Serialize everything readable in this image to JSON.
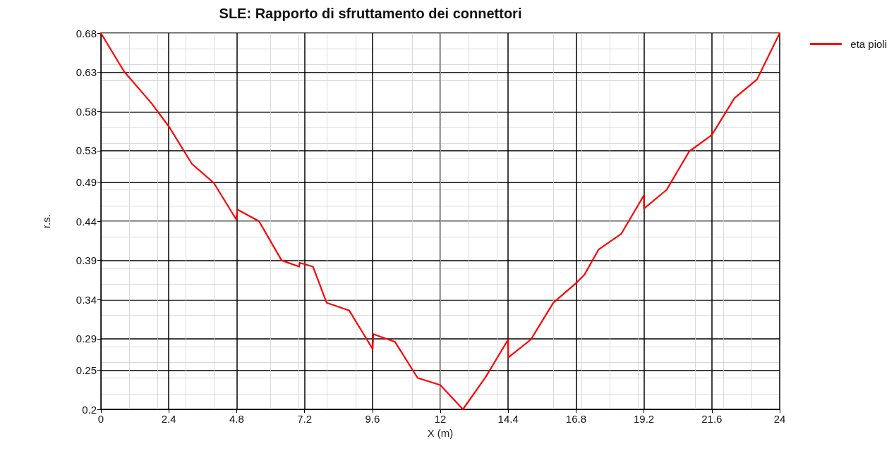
{
  "chart_data": {
    "type": "line",
    "title": "SLE: Rapporto di sfruttamento dei connettori",
    "xlabel": "X (m)",
    "ylabel": "r.s.",
    "series": [
      {
        "name": "eta pioli",
        "color": "#ff0000",
        "x": [
          0,
          0.82,
          1.8,
          2.42,
          3.22,
          3.99,
          4.79,
          4.82,
          5.59,
          6.39,
          7.01,
          7.03,
          7.5,
          7.98,
          8.78,
          9.61,
          9.63,
          10.4,
          11.2,
          12.0,
          12.8,
          13.6,
          14.4,
          14.4,
          15.2,
          16.0,
          16.8,
          17.1,
          17.6,
          18.4,
          19.2,
          19.2,
          20.0,
          20.8,
          21.6,
          22.4,
          23.2,
          24
        ],
        "values": [
          0.68,
          0.631,
          0.59,
          0.56,
          0.513,
          0.489,
          0.442,
          0.455,
          0.44,
          0.39,
          0.382,
          0.387,
          0.382,
          0.336,
          0.326,
          0.277,
          0.296,
          0.286,
          0.24,
          0.231,
          0.2,
          0.241,
          0.289,
          0.266,
          0.289,
          0.336,
          0.361,
          0.372,
          0.404,
          0.424,
          0.473,
          0.456,
          0.48,
          0.529,
          0.55,
          0.597,
          0.621,
          0.68
        ]
      }
    ],
    "xlim": [
      0,
      24
    ],
    "xticks": [
      0,
      2.4,
      4.8,
      7.2,
      9.6,
      12,
      14.4,
      16.8,
      19.2,
      21.6,
      24
    ],
    "ylim": [
      0.2,
      0.68
    ],
    "yticks": [
      0.2,
      0.25,
      0.29,
      0.34,
      0.39,
      0.44,
      0.49,
      0.53,
      0.58,
      0.63,
      0.68
    ],
    "grid": true,
    "legend": "top right",
    "marker": "none",
    "line_style": "solid"
  }
}
